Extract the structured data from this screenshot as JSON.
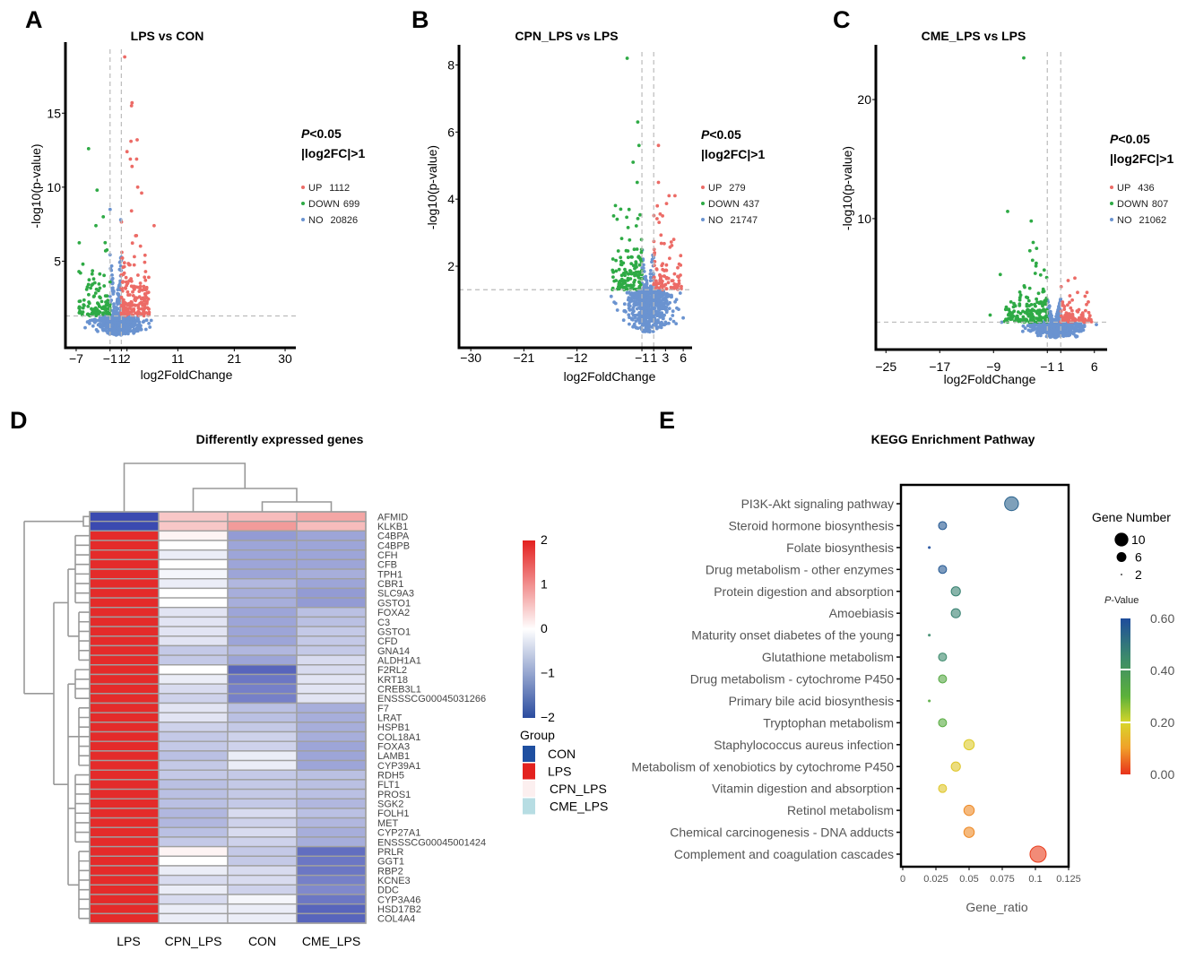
{
  "panel_labels": [
    "A",
    "B",
    "C",
    "D",
    "E"
  ],
  "chart_data": [
    {
      "type": "scatter",
      "title": "LPS vs CON",
      "xlabel": "log2FoldChange",
      "ylabel": "-log10(p-value)",
      "x_ticks": [
        -7,
        -1,
        1,
        2,
        11,
        21,
        30
      ],
      "x_tick_labels": [
        "−7",
        "−1",
        "1",
        "2",
        "11",
        "21",
        "30"
      ],
      "y_ticks": [
        5,
        10,
        15
      ],
      "xlim": [
        -8.9,
        31.9
      ],
      "ylim": [
        -0.85,
        19.8
      ],
      "fc_threshold_lines": [
        -1,
        1
      ],
      "p_threshold_line": 1.3,
      "criteria": {
        "p_symbol": "P",
        "p_text": "<0.05",
        "fc_text": "|log2FC|>1"
      },
      "series": [
        {
          "name": "UP",
          "count": "1112",
          "color": "#ec6b66"
        },
        {
          "name": "DOWN",
          "count": "699",
          "color": "#2eaa45"
        },
        {
          "name": "NO",
          "count": "20826",
          "color": "#6a93d0"
        }
      ],
      "notable_points": {
        "UP": [
          [
            1.6,
            18.8
          ],
          [
            2.9,
            15.7
          ],
          [
            2.8,
            15.5
          ],
          [
            2.7,
            13.1
          ],
          [
            3.8,
            13.2
          ],
          [
            2,
            12.4
          ],
          [
            2.6,
            11.9
          ],
          [
            3.7,
            11.9
          ],
          [
            2.9,
            11.4
          ],
          [
            3.9,
            10
          ],
          [
            4.6,
            9.6
          ],
          [
            2.8,
            8.4
          ],
          [
            6.8,
            7.4
          ],
          [
            5.2,
            5.4
          ],
          [
            5.3,
            4.3
          ]
        ],
        "DOWN": [
          [
            -4.8,
            12.6
          ],
          [
            -3.3,
            9.8
          ],
          [
            -2.2,
            8
          ],
          [
            -3.5,
            7.4
          ],
          [
            -5.8,
            4.8
          ],
          [
            -6.5,
            4.3
          ]
        ],
        "NO": [
          [
            -1,
            8.5
          ],
          [
            0.9,
            7.8
          ],
          [
            6.3,
            1.0
          ]
        ]
      }
    },
    {
      "type": "scatter",
      "title": "CPN_LPS vs LPS",
      "xlabel": "log2FoldChange",
      "ylabel": "-log10(p-value)",
      "x_ticks": [
        -30,
        -21,
        -12,
        -1,
        1,
        3,
        6
      ],
      "x_tick_labels": [
        "−30",
        "−21",
        "−12",
        "−1",
        "1",
        "3",
        "6"
      ],
      "y_ticks": [
        2,
        4,
        6,
        8
      ],
      "xlim": [
        -32,
        7.5
      ],
      "ylim": [
        -0.43,
        8.6
      ],
      "fc_threshold_lines": [
        -1,
        1
      ],
      "p_threshold_line": 1.3,
      "criteria": {
        "p_symbol": "P",
        "p_text": "<0.05",
        "fc_text": "|log2FC|>1"
      },
      "series": [
        {
          "name": "UP",
          "count": "279",
          "color": "#ec6b66"
        },
        {
          "name": "DOWN",
          "count": "437",
          "color": "#2eaa45"
        },
        {
          "name": "NO",
          "count": "21747",
          "color": "#6a93d0"
        }
      ],
      "notable_points": {
        "UP": [
          [
            1.8,
            5.6
          ],
          [
            1.8,
            4.5
          ],
          [
            3.6,
            4.1
          ],
          [
            4.6,
            4.1
          ],
          [
            1.6,
            3.8
          ],
          [
            2.5,
            3.5
          ],
          [
            4.4,
            2.8
          ]
        ],
        "DOWN": [
          [
            -3.5,
            8.2
          ],
          [
            -1.7,
            6.3
          ],
          [
            -1.5,
            5.6
          ],
          [
            -2.5,
            5.1
          ],
          [
            -1.8,
            4.5
          ],
          [
            -5.8,
            3.5
          ],
          [
            -4.6,
            3.7
          ],
          [
            -5.2,
            3.4
          ]
        ],
        "NO": [
          [
            -6.2,
            1.1
          ],
          [
            5.5,
            1.2
          ]
        ]
      }
    },
    {
      "type": "scatter",
      "title": "CME_LPS vs LPS",
      "xlabel": "log2FoldChange",
      "ylabel": "-log10(p-value)",
      "x_ticks": [
        -25,
        -17,
        -9,
        -1,
        1,
        6
      ],
      "x_tick_labels": [
        "−25",
        "−17",
        "−9",
        "−1",
        "1",
        "6"
      ],
      "y_ticks": [
        10,
        20
      ],
      "xlim": [
        -26.5,
        7.9
      ],
      "ylim": [
        -1,
        24.6
      ],
      "fc_threshold_lines": [
        -1,
        1
      ],
      "p_threshold_line": 1.3,
      "criteria": {
        "p_symbol": "P",
        "p_text": "<0.05",
        "fc_text": "|log2FC|>1"
      },
      "series": [
        {
          "name": "UP",
          "count": "436",
          "color": "#ec6b66"
        },
        {
          "name": "DOWN",
          "count": "807",
          "color": "#2eaa45"
        },
        {
          "name": "NO",
          "count": "21062",
          "color": "#6a93d0"
        }
      ],
      "notable_points": {
        "UP": [
          [
            2.1,
            4.8
          ],
          [
            3.1,
            5.0
          ],
          [
            4.9,
            3.8
          ],
          [
            5.1,
            3.0
          ],
          [
            3.5,
            3.8
          ]
        ],
        "DOWN": [
          [
            -4.5,
            23.5
          ],
          [
            -6.9,
            10.6
          ],
          [
            -3.4,
            9.8
          ],
          [
            -3.1,
            8
          ],
          [
            -3.6,
            7.3
          ],
          [
            -2.6,
            7.5
          ],
          [
            -3.2,
            6.5
          ],
          [
            -8,
            5.3
          ],
          [
            -2.8,
            5.4
          ],
          [
            -9.5,
            1.9
          ]
        ],
        "NO": [
          [
            6.3,
            1.1
          ],
          [
            -7.8,
            1.3
          ]
        ]
      }
    },
    {
      "type": "heatmap",
      "title": "Differently expressed genes",
      "columns": [
        "LPS",
        "CPN_LPS",
        "CON",
        "CME_LPS"
      ],
      "genes": [
        "AFMID",
        "KLKB1",
        "C4BPA",
        "C4BPB",
        "CFH",
        "CFB",
        "TPH1",
        "CBR1",
        "SLC9A3",
        "GSTO1",
        "FOXA2",
        "C3",
        "GSTO1",
        "CFD",
        "GNA14",
        "ALDH1A1",
        "F2RL2",
        "KRT18",
        "CREB3L1",
        "ENSSSCG00045031266",
        "F7",
        "LRAT",
        "HSPB1",
        "COL18A1",
        "FOXA3",
        "LAMB1",
        "CYP39A1",
        "RDH5",
        "FLT1",
        "PROS1",
        "SGK2",
        "FOLH1",
        "MET",
        "CYP27A1",
        "ENSSSCG00045001424",
        "PRLR",
        "GGT1",
        "RBP2",
        "KCNE3",
        "DDC",
        "CYP3A46",
        "HSD17B2",
        "COL4A4"
      ],
      "values": [
        [
          -2,
          0.5,
          0.6,
          0.8
        ],
        [
          -2,
          0.5,
          0.9,
          0.6
        ],
        [
          1.9,
          0.1,
          -1.1,
          -1.0
        ],
        [
          1.9,
          0,
          -1.0,
          -1.0
        ],
        [
          1.9,
          -0.2,
          -1.0,
          -1.0
        ],
        [
          1.9,
          0,
          -1.0,
          -1.0
        ],
        [
          1.9,
          -0.1,
          -1.0,
          -0.9
        ],
        [
          1.9,
          -0.2,
          -0.8,
          -1.0
        ],
        [
          1.9,
          0,
          -0.9,
          -1.1
        ],
        [
          1.9,
          0,
          -0.9,
          -1.1
        ],
        [
          1.9,
          -0.3,
          -1.0,
          -0.7
        ],
        [
          1.9,
          -0.3,
          -1.0,
          -0.7
        ],
        [
          1.9,
          -0.3,
          -1.0,
          -0.6
        ],
        [
          1.9,
          -0.3,
          -1.0,
          -0.6
        ],
        [
          1.9,
          -0.6,
          -0.8,
          -0.6
        ],
        [
          1.9,
          -0.6,
          -1.0,
          -0.4
        ],
        [
          1.9,
          0,
          -1.7,
          -0.4
        ],
        [
          1.9,
          -0.2,
          -1.5,
          -0.3
        ],
        [
          1.9,
          -0.4,
          -1.4,
          -0.3
        ],
        [
          1.9,
          -0.5,
          -1.4,
          -0.3
        ],
        [
          1.9,
          -0.3,
          -0.7,
          -0.9
        ],
        [
          1.9,
          -0.3,
          -0.7,
          -0.9
        ],
        [
          1.9,
          -0.5,
          -0.6,
          -0.9
        ],
        [
          1.9,
          -0.6,
          -0.5,
          -0.9
        ],
        [
          1.9,
          -0.6,
          -0.5,
          -1.0
        ],
        [
          1.9,
          -0.7,
          -0.2,
          -1.0
        ],
        [
          1.9,
          -0.6,
          -0.2,
          -1.0
        ],
        [
          1.9,
          -0.6,
          -0.6,
          -0.7
        ],
        [
          1.9,
          -0.7,
          -0.6,
          -0.7
        ],
        [
          1.9,
          -0.7,
          -0.6,
          -0.7
        ],
        [
          1.9,
          -0.7,
          -0.6,
          -0.8
        ],
        [
          1.9,
          -0.8,
          -0.4,
          -0.7
        ],
        [
          1.9,
          -0.8,
          -0.5,
          -0.8
        ],
        [
          1.9,
          -0.7,
          -0.4,
          -0.9
        ],
        [
          1.9,
          -0.6,
          -0.5,
          -0.9
        ],
        [
          1.9,
          0.1,
          -0.6,
          -1.6
        ],
        [
          1.9,
          0,
          -0.6,
          -1.5
        ],
        [
          1.9,
          -0.2,
          -0.4,
          -1.5
        ],
        [
          1.9,
          -0.4,
          -0.4,
          -1.4
        ],
        [
          1.9,
          -0.2,
          -0.5,
          -1.3
        ],
        [
          1.9,
          -0.4,
          -0.1,
          -1.5
        ],
        [
          1.9,
          -0.2,
          -0.2,
          -1.7
        ],
        [
          1.9,
          -0.2,
          -0.2,
          -1.7
        ]
      ],
      "color_scale": {
        "min": -2,
        "max": 2,
        "low": "#3b4ab0",
        "mid": "#ffffff",
        "high": "#e3201f",
        "ticks": [
          2,
          1,
          0,
          -1,
          -2
        ],
        "tick_labels": [
          "2",
          "1",
          "0",
          "−1",
          "−2"
        ]
      },
      "group_legend": {
        "title": "Group",
        "groups": [
          {
            "name": "CON",
            "color": "#1f4fa0"
          },
          {
            "name": "LPS",
            "color": "#e3221f"
          },
          {
            "name": "CPN_LPS",
            "color": "#fcefef"
          },
          {
            "name": "CME_LPS",
            "color": "#b7dde3"
          }
        ]
      }
    },
    {
      "type": "scatter",
      "title": "KEGG Enrichment Pathway",
      "xlabel": "Gene_ratio",
      "x_ticks": [
        0,
        0.025,
        0.05,
        0.075,
        0.1,
        0.125
      ],
      "x_tick_labels": [
        "0",
        "0.025",
        "0.05",
        "0.075",
        "0.1",
        "0.125"
      ],
      "xlim": [
        0,
        0.125
      ],
      "pathways": [
        {
          "name": "PI3K-Akt signaling pathway",
          "gene_ratio": 0.082,
          "gene_number": 8,
          "p_value": 0.55
        },
        {
          "name": "Steroid hormone biosynthesis",
          "gene_ratio": 0.03,
          "gene_number": 3,
          "p_value": 0.57
        },
        {
          "name": "Folate biosynthesis",
          "gene_ratio": 0.02,
          "gene_number": 2,
          "p_value": 0.6
        },
        {
          "name": "Drug metabolism - other enzymes",
          "gene_ratio": 0.03,
          "gene_number": 3,
          "p_value": 0.57
        },
        {
          "name": "Protein digestion and absorption",
          "gene_ratio": 0.04,
          "gene_number": 4,
          "p_value": 0.47
        },
        {
          "name": "Amoebiasis",
          "gene_ratio": 0.04,
          "gene_number": 4,
          "p_value": 0.47
        },
        {
          "name": "Maturity onset diabetes of the young",
          "gene_ratio": 0.02,
          "gene_number": 2,
          "p_value": 0.45
        },
        {
          "name": "Glutathione metabolism",
          "gene_ratio": 0.03,
          "gene_number": 3,
          "p_value": 0.45
        },
        {
          "name": "Drug metabolism - cytochrome P450",
          "gene_ratio": 0.03,
          "gene_number": 3,
          "p_value": 0.33
        },
        {
          "name": "Primary bile acid biosynthesis",
          "gene_ratio": 0.02,
          "gene_number": 2,
          "p_value": 0.32
        },
        {
          "name": "Tryptophan metabolism",
          "gene_ratio": 0.03,
          "gene_number": 3,
          "p_value": 0.32
        },
        {
          "name": "Staphylococcus aureus infection",
          "gene_ratio": 0.05,
          "gene_number": 5,
          "p_value": 0.18
        },
        {
          "name": "Metabolism of xenobiotics by cytochrome P450",
          "gene_ratio": 0.04,
          "gene_number": 4,
          "p_value": 0.17
        },
        {
          "name": "Vitamin digestion and absorption",
          "gene_ratio": 0.03,
          "gene_number": 3,
          "p_value": 0.17
        },
        {
          "name": "Retinol metabolism",
          "gene_ratio": 0.05,
          "gene_number": 5,
          "p_value": 0.08
        },
        {
          "name": "Chemical carcinogenesis - DNA adducts",
          "gene_ratio": 0.05,
          "gene_number": 5,
          "p_value": 0.08
        },
        {
          "name": "Complement and coagulation cascades",
          "gene_ratio": 0.102,
          "gene_number": 10,
          "p_value": 0.01,
          "highlight_color": "#cc0000"
        }
      ],
      "size_legend": {
        "title": "Gene Number",
        "values": [
          10,
          6,
          2
        ],
        "labels": [
          "10",
          "6",
          "2"
        ]
      },
      "color_legend": {
        "title_symbol": "P",
        "title_text": "-Value",
        "ticks": [
          0.6,
          0.4,
          0.2,
          0
        ],
        "tick_labels": [
          "0.60",
          "0.40",
          "0.20",
          "0.00"
        ],
        "stops": [
          [
            0,
            "#e8321b"
          ],
          [
            0.1,
            "#f0a02a"
          ],
          [
            0.2,
            "#d8d62a"
          ],
          [
            0.3,
            "#5cb13a"
          ],
          [
            0.45,
            "#3c8a6c"
          ],
          [
            0.6,
            "#1e4c9c"
          ]
        ]
      }
    }
  ]
}
